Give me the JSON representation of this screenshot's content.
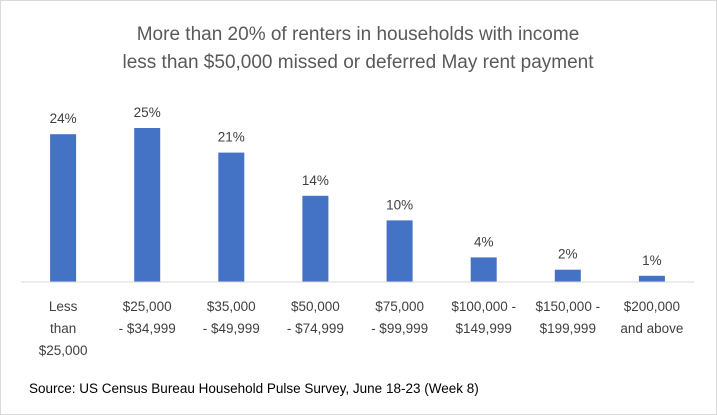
{
  "chart_data": {
    "type": "bar",
    "title": "More than 20% of  renters in households with income less than $50,000 missed or deferred May rent payment",
    "title_lines": [
      "More than 20% of  renters in households with income",
      "less than $50,000 missed or deferred May rent payment"
    ],
    "categories": [
      "Less than $25,000",
      "$25,000 - $34,999",
      "$35,000 - $49,999",
      "$50,000 - $74,999",
      "$75,000 - $99,999",
      "$100,000 - $149,999",
      "$150,000 - $199,999",
      "$200,000 and above"
    ],
    "category_lines": [
      [
        "Less",
        "than",
        "$25,000"
      ],
      [
        "$25,000",
        "- $34,999"
      ],
      [
        "$35,000",
        "- $49,999"
      ],
      [
        "$50,000",
        "- $74,999"
      ],
      [
        "$75,000",
        "- $99,999"
      ],
      [
        "$100,000 -",
        "$149,999"
      ],
      [
        "$150,000 -",
        "$199,999"
      ],
      [
        "$200,000",
        "and above"
      ]
    ],
    "values": [
      24,
      25,
      21,
      14,
      10,
      4,
      2,
      1
    ],
    "data_labels": [
      "24%",
      "25%",
      "21%",
      "14%",
      "10%",
      "4%",
      "2%",
      "1%"
    ],
    "ylim": [
      0,
      25
    ],
    "xlabel": "",
    "ylabel": "",
    "grid": false,
    "legend": "none",
    "bar_color": "#4472c4",
    "source": "Source: US Census Bureau Household Pulse Survey, June 18-23 (Week 8)"
  },
  "colors": {
    "bar": "#4472c4",
    "title": "#595959",
    "axis": "#d9d9d9",
    "labels": "#404040"
  }
}
